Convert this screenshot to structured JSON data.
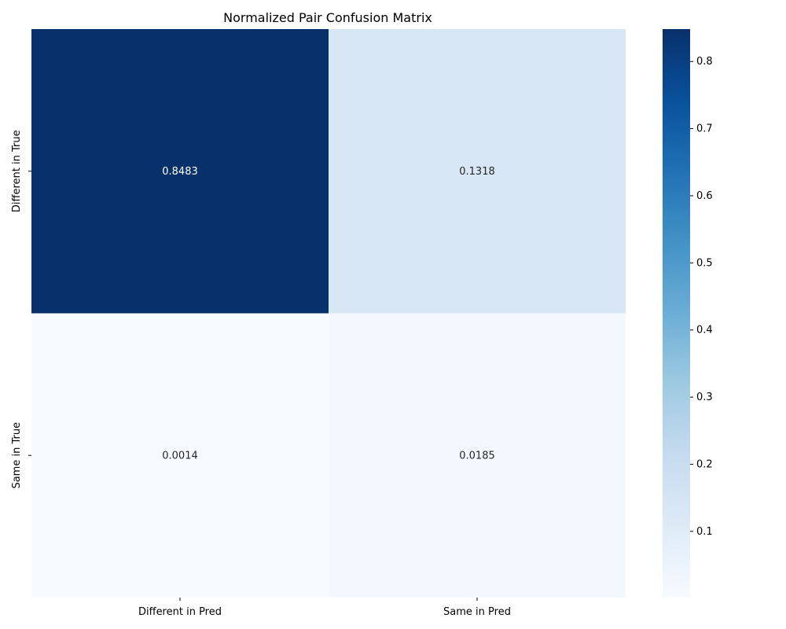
{
  "chart_data": {
    "type": "heatmap",
    "title": "Normalized Pair Confusion Matrix",
    "xlabel": "",
    "ylabel": "",
    "x_categories": [
      "Different in Pred",
      "Same in Pred"
    ],
    "y_categories": [
      "Different in True",
      "Same in True"
    ],
    "values": [
      [
        0.8483,
        0.1318
      ],
      [
        0.0014,
        0.0185
      ]
    ],
    "cell_labels": [
      [
        "0.8483",
        "0.1318"
      ],
      [
        "0.0014",
        "0.0185"
      ]
    ],
    "colormap": "Blues",
    "colorbar": {
      "vmin": 0.0014,
      "vmax": 0.8483,
      "ticks": [
        0.1,
        0.2,
        0.3,
        0.4,
        0.5,
        0.6,
        0.7,
        0.8
      ],
      "tick_labels": [
        "0.1",
        "0.2",
        "0.3",
        "0.4",
        "0.5",
        "0.6",
        "0.7",
        "0.8"
      ]
    },
    "grid": false,
    "legend": "colorbar right"
  }
}
